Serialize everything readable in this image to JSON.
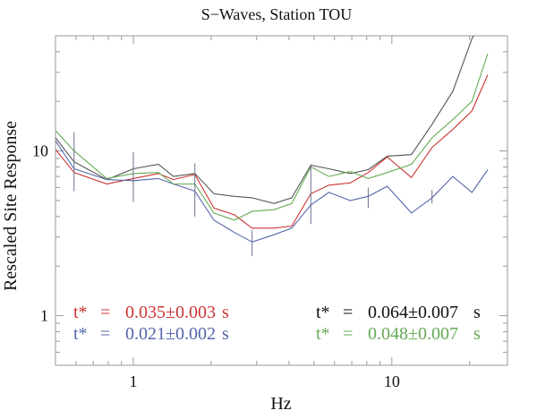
{
  "chart_data": {
    "type": "line",
    "title": "S−Waves, Station TOU",
    "xlabel": "Hz",
    "ylabel": "Rescaled Site Response",
    "xscale": "log",
    "yscale": "log",
    "xlim": [
      0.5,
      28
    ],
    "ylim": [
      0.5,
      50
    ],
    "xticks": [
      {
        "value": 1,
        "label": "1"
      },
      {
        "value": 10,
        "label": "10"
      }
    ],
    "yticks": [
      {
        "value": 1,
        "label": "1"
      },
      {
        "value": 10,
        "label": "10"
      }
    ],
    "grid": false,
    "x": [
      0.5,
      0.59,
      0.79,
      1.0,
      1.25,
      1.43,
      1.73,
      2.05,
      2.46,
      2.88,
      3.5,
      4.1,
      4.86,
      5.71,
      6.9,
      8.1,
      9.6,
      11.9,
      14.3,
      17.2,
      20.4,
      23.5
    ],
    "series": [
      {
        "color": "#555555",
        "values": [
          12.0,
          8.6,
          6.7,
          7.8,
          8.3,
          7.0,
          7.3,
          5.5,
          5.3,
          5.2,
          4.8,
          5.2,
          8.2,
          7.8,
          7.3,
          7.7,
          9.3,
          9.5,
          14.5,
          23.0,
          48.0,
          70.0
        ]
      },
      {
        "color": "#cc3333",
        "values": [
          10.2,
          7.4,
          6.3,
          6.8,
          7.3,
          6.7,
          7.2,
          4.5,
          4.1,
          3.4,
          3.4,
          3.5,
          5.5,
          6.2,
          6.4,
          7.4,
          9.2,
          6.9,
          10.5,
          13.5,
          17.5,
          29.0
        ]
      },
      {
        "color": "#5566aa",
        "values": [
          11.5,
          7.8,
          6.7,
          6.6,
          6.8,
          6.3,
          5.7,
          3.8,
          3.2,
          2.8,
          3.1,
          3.4,
          4.7,
          5.6,
          5.0,
          5.3,
          6.1,
          4.2,
          5.2,
          7.0,
          5.6,
          7.7
        ]
      },
      {
        "color": "#66aa55",
        "values": [
          13.3,
          10.0,
          6.8,
          7.3,
          7.4,
          6.3,
          6.3,
          4.2,
          3.8,
          4.3,
          4.4,
          4.8,
          8.0,
          7.0,
          7.5,
          6.8,
          7.4,
          8.3,
          12.0,
          15.5,
          20.0,
          39.0
        ]
      }
    ],
    "error_bars": [
      {
        "x": 0.59,
        "low": 5.7,
        "high": 13.0
      },
      {
        "x": 1.0,
        "low": 4.9,
        "high": 9.8
      },
      {
        "x": 1.73,
        "low": 4.0,
        "high": 8.4
      },
      {
        "x": 2.88,
        "low": 2.3,
        "high": 3.3
      },
      {
        "x": 4.86,
        "low": 3.6,
        "high": 8.3
      },
      {
        "x": 8.1,
        "low": 4.5,
        "high": 6.0
      },
      {
        "x": 14.3,
        "low": 4.8,
        "high": 5.8
      }
    ],
    "annotations": [
      {
        "label": "t*",
        "eq": "=",
        "value": "0.035±0.003",
        "unit": "s",
        "color": "#cc3333",
        "position": "bottom-left"
      },
      {
        "label": "t*",
        "eq": "=",
        "value": "0.021±0.002",
        "unit": "s",
        "color": "#5566aa",
        "position": "bottom-left"
      },
      {
        "label": "t*",
        "eq": "=",
        "value": "0.064±0.007",
        "unit": "s",
        "color": "#111111",
        "position": "bottom-right"
      },
      {
        "label": "t*",
        "eq": "=",
        "value": "0.048±0.007",
        "unit": "s",
        "color": "#66aa55",
        "position": "bottom-right"
      }
    ]
  }
}
